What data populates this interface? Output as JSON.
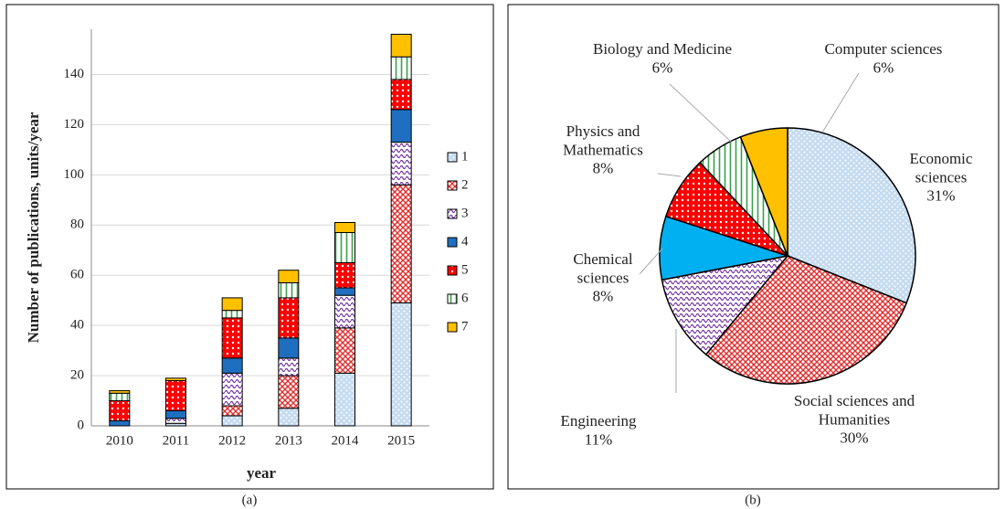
{
  "chart_data": [
    {
      "type": "bar",
      "stacked": true,
      "categories": [
        "2010",
        "2011",
        "2012",
        "2013",
        "2014",
        "2015"
      ],
      "x_label": "year",
      "y_label": "Number of publications, units/year",
      "series": [
        {
          "name": "1",
          "color": "#7fb0e0",
          "values": [
            0,
            1,
            4,
            7,
            21,
            49
          ]
        },
        {
          "name": "2",
          "color": "#e03030",
          "values": [
            0,
            0,
            4,
            13,
            18,
            47
          ]
        },
        {
          "name": "3",
          "color": "#7030a0",
          "values": [
            0,
            2,
            13,
            7,
            13,
            17
          ]
        },
        {
          "name": "4",
          "color": "#1f6fc0",
          "values": [
            2,
            3,
            6,
            8,
            3,
            13
          ]
        },
        {
          "name": "5",
          "color": "#ff0000",
          "values": [
            8,
            12,
            16,
            16,
            10,
            12
          ]
        },
        {
          "name": "6",
          "color": "#3aa04a",
          "values": [
            3,
            0,
            3,
            6,
            12,
            9
          ]
        },
        {
          "name": "7",
          "color": "#ffc000",
          "values": [
            1,
            1,
            5,
            5,
            4,
            9
          ]
        }
      ],
      "ylim": [
        0,
        158
      ],
      "yticks": [
        0,
        20,
        40,
        60,
        80,
        100,
        120,
        140
      ],
      "grid": true,
      "legend": "right",
      "caption": "(a)"
    },
    {
      "type": "pie",
      "labels": [
        "Economic\nsciences",
        "Social sciences and\nHumanities",
        "Engineering",
        "Chemical\nsciences",
        "Physics and\nMathematics",
        "Biology and Medicine",
        "Computer sciences"
      ],
      "values": [
        31,
        30,
        11,
        8,
        8,
        6,
        6
      ],
      "value_labels": [
        "31%",
        "30%",
        "11%",
        "8%",
        "8%",
        "6%",
        "6%"
      ],
      "colors": [
        "#7fb0e0",
        "#e03030",
        "#7030a0",
        "#00b0f0",
        "#ff0000",
        "#3aa04a",
        "#ffc000"
      ],
      "caption": "(b)"
    }
  ]
}
